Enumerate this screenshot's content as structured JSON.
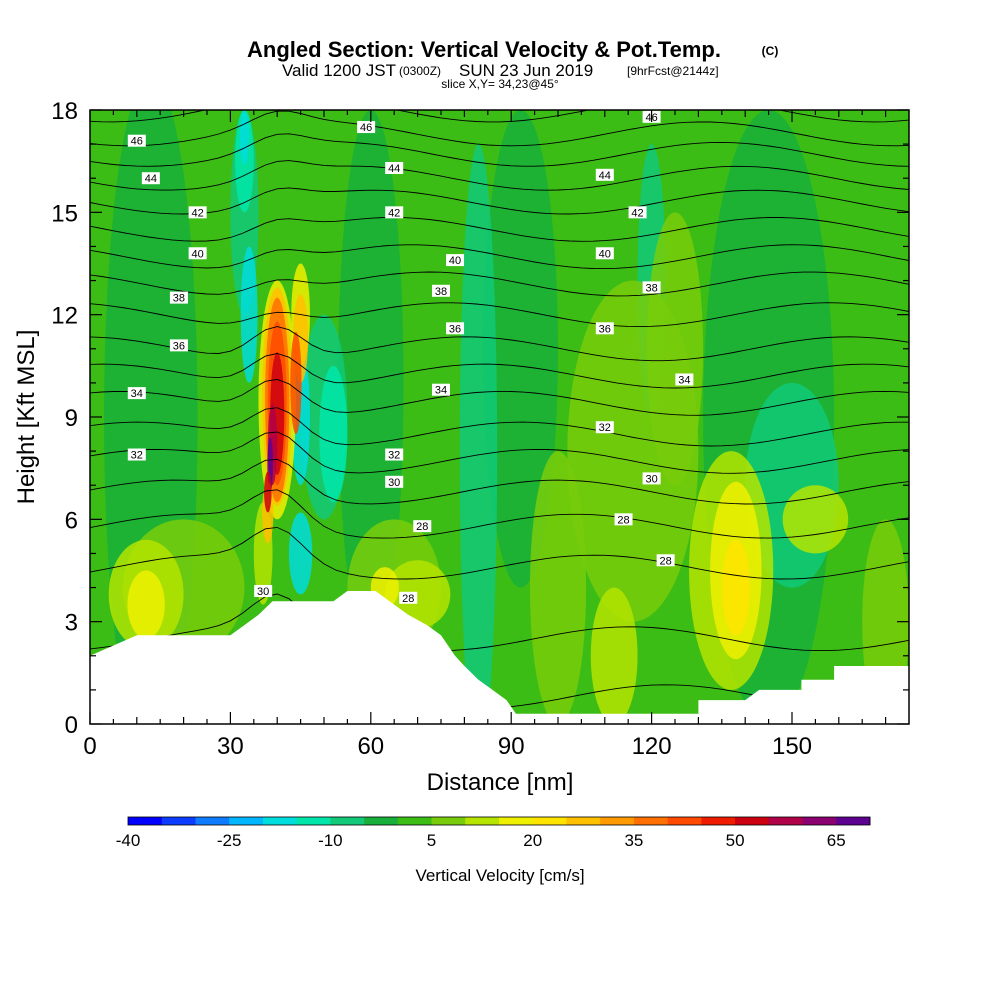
{
  "title": {
    "main": "Angled Section: Vertical Velocity & Pot.Temp.",
    "copyright": "(C)",
    "valid_prefix": "Valid 1200 JST",
    "valid_utc": "(0300Z)",
    "valid_date": "SUN 23 Jun 2019",
    "forecast": "[9hrFcst@2144z]",
    "slice": "slice X,Y= 34,23@45°"
  },
  "chart_data": {
    "type": "heatmap",
    "xlabel": "Distance [nm]",
    "ylabel": "Height [Kft MSL]",
    "xlim": [
      0,
      175
    ],
    "ylim": [
      0,
      18
    ],
    "xticks": [
      0,
      30,
      60,
      90,
      120,
      150
    ],
    "yticks": [
      0,
      3,
      6,
      9,
      12,
      15,
      18
    ],
    "colorbar": {
      "title": "Vertical Velocity [cm/s]",
      "min": -40,
      "max": 70,
      "step": 5,
      "labels": [
        -40,
        -25,
        -10,
        5,
        20,
        35,
        50,
        65
      ],
      "colors": [
        "#0000ff",
        "#0b3cff",
        "#0f7cff",
        "#00b6ff",
        "#00dddd",
        "#00e6aa",
        "#11c978",
        "#18b03a",
        "#3cbd16",
        "#78cc0a",
        "#b4e400",
        "#eef000",
        "#ffe400",
        "#ffc000",
        "#ff9a00",
        "#ff7000",
        "#ff4a00",
        "#f01c00",
        "#cc0010",
        "#b00048",
        "#8a0070",
        "#5c0090"
      ]
    },
    "fields": {
      "terrain_profile": [
        [
          0,
          2.0
        ],
        [
          5,
          2.3
        ],
        [
          10,
          2.6
        ],
        [
          20,
          2.6
        ],
        [
          30,
          2.6
        ],
        [
          33,
          2.9
        ],
        [
          36,
          3.2
        ],
        [
          39,
          3.6
        ],
        [
          45,
          3.6
        ],
        [
          52,
          3.6
        ],
        [
          55,
          3.9
        ],
        [
          61,
          3.9
        ],
        [
          64,
          3.6
        ],
        [
          68,
          3.2
        ],
        [
          72,
          2.9
        ],
        [
          75,
          2.6
        ],
        [
          78,
          2.0
        ],
        [
          80,
          1.7
        ],
        [
          83,
          1.3
        ],
        [
          86,
          1.0
        ],
        [
          89,
          0.7
        ],
        [
          91,
          0.3
        ],
        [
          100,
          0.3
        ],
        [
          110,
          0.3
        ],
        [
          122,
          0.3
        ],
        [
          130,
          0.3
        ],
        [
          130,
          0.7
        ],
        [
          140,
          0.7
        ],
        [
          143,
          1.0
        ],
        [
          152,
          1.0
        ],
        [
          152,
          1.3
        ],
        [
          159,
          1.3
        ],
        [
          159,
          1.7
        ],
        [
          175,
          1.7
        ]
      ],
      "theta_contour_labels": [
        {
          "x": 10,
          "y": 17.1,
          "label": "46"
        },
        {
          "x": 59,
          "y": 17.5,
          "label": "46"
        },
        {
          "x": 120,
          "y": 17.8,
          "label": "46"
        },
        {
          "x": 13,
          "y": 16.0,
          "label": "44"
        },
        {
          "x": 65,
          "y": 16.3,
          "label": "44"
        },
        {
          "x": 110,
          "y": 16.1,
          "label": "44"
        },
        {
          "x": 23,
          "y": 15.0,
          "label": "42"
        },
        {
          "x": 65,
          "y": 15.0,
          "label": "42"
        },
        {
          "x": 117,
          "y": 15.0,
          "label": "42"
        },
        {
          "x": 23,
          "y": 13.8,
          "label": "40"
        },
        {
          "x": 78,
          "y": 13.6,
          "label": "40"
        },
        {
          "x": 110,
          "y": 13.8,
          "label": "40"
        },
        {
          "x": 19,
          "y": 12.5,
          "label": "38"
        },
        {
          "x": 75,
          "y": 12.7,
          "label": "38"
        },
        {
          "x": 120,
          "y": 12.8,
          "label": "38"
        },
        {
          "x": 19,
          "y": 11.1,
          "label": "36"
        },
        {
          "x": 78,
          "y": 11.6,
          "label": "36"
        },
        {
          "x": 110,
          "y": 11.6,
          "label": "36"
        },
        {
          "x": 10,
          "y": 9.7,
          "label": "34"
        },
        {
          "x": 75,
          "y": 9.8,
          "label": "34"
        },
        {
          "x": 127,
          "y": 10.1,
          "label": "34"
        },
        {
          "x": 10,
          "y": 7.9,
          "label": "32"
        },
        {
          "x": 65,
          "y": 7.9,
          "label": "32"
        },
        {
          "x": 110,
          "y": 8.7,
          "label": "32"
        },
        {
          "x": 65,
          "y": 7.1,
          "label": "30"
        },
        {
          "x": 120,
          "y": 7.2,
          "label": "30"
        },
        {
          "x": 37,
          "y": 3.9,
          "label": "30"
        },
        {
          "x": 71,
          "y": 5.8,
          "label": "28"
        },
        {
          "x": 114,
          "y": 6.0,
          "label": "28"
        },
        {
          "x": 68,
          "y": 3.7,
          "label": "28"
        },
        {
          "x": 123,
          "y": 4.8,
          "label": "28"
        }
      ]
    }
  }
}
